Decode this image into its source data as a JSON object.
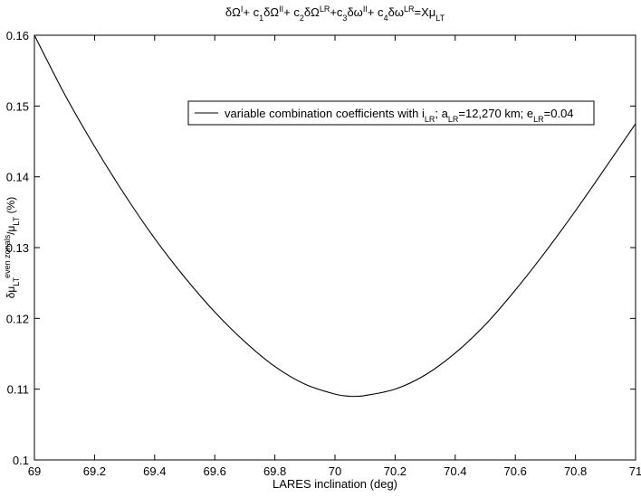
{
  "chart_data": {
    "type": "line",
    "title": {
      "parts": [
        {
          "text": "δΩ"
        },
        {
          "text": "I",
          "shift": "super"
        },
        {
          "text": "+ c"
        },
        {
          "text": "1",
          "shift": "sub"
        },
        {
          "text": "δΩ"
        },
        {
          "text": "II",
          "shift": "super"
        },
        {
          "text": "+ c"
        },
        {
          "text": "2",
          "shift": "sub"
        },
        {
          "text": "δΩ"
        },
        {
          "text": "LR",
          "shift": "super"
        },
        {
          "text": "+c"
        },
        {
          "text": "3",
          "shift": "sub"
        },
        {
          "text": "δω"
        },
        {
          "text": "II",
          "shift": "super"
        },
        {
          "text": "+ c"
        },
        {
          "text": "4",
          "shift": "sub"
        },
        {
          "text": "δω"
        },
        {
          "text": "LR",
          "shift": "super"
        },
        {
          "text": "=Xμ"
        },
        {
          "text": "LT",
          "shift": "sub"
        }
      ]
    },
    "xlabel": "LARES inclination (deg)",
    "ylabel": {
      "parts": [
        {
          "text": "δμ"
        },
        {
          "text": "LT",
          "shift": "sub"
        },
        {
          "text": "even zonals",
          "shift": "super"
        },
        {
          "text": "/μ"
        },
        {
          "text": "LT",
          "shift": "sub"
        },
        {
          "text": " (%)"
        }
      ]
    },
    "xlim": [
      69,
      71
    ],
    "ylim": [
      0.1,
      0.16
    ],
    "xticks": [
      "69",
      "69.2",
      "69.4",
      "69.6",
      "69.8",
      "70",
      "70.2",
      "70.4",
      "70.6",
      "70.8",
      "71"
    ],
    "yticks": [
      "0.1",
      "0.11",
      "0.12",
      "0.13",
      "0.14",
      "0.15",
      "0.16"
    ],
    "grid": false,
    "legend_position": "top-right",
    "series": [
      {
        "name": {
          "parts": [
            {
              "text": "variable combination coefficients with i"
            },
            {
              "text": "LR",
              "shift": "sub"
            },
            {
              "text": "; a"
            },
            {
              "text": "LR",
              "shift": "sub"
            },
            {
              "text": "=12,270 km; e"
            },
            {
              "text": "LR",
              "shift": "sub"
            },
            {
              "text": "=0.04"
            }
          ]
        },
        "color": "#000000",
        "x": [
          69.0,
          69.1,
          69.2,
          69.3,
          69.4,
          69.5,
          69.6,
          69.7,
          69.8,
          69.9,
          70.0,
          70.05,
          70.07,
          70.1,
          70.2,
          70.3,
          70.4,
          70.5,
          70.6,
          70.7,
          70.8,
          70.9,
          71.0
        ],
        "y": [
          0.16,
          0.1517,
          0.1443,
          0.1375,
          0.1313,
          0.1258,
          0.1209,
          0.1167,
          0.1132,
          0.1107,
          0.1093,
          0.109,
          0.109,
          0.1091,
          0.11,
          0.112,
          0.1151,
          0.1191,
          0.124,
          0.1294,
          0.1352,
          0.1413,
          0.1475
        ]
      }
    ]
  }
}
